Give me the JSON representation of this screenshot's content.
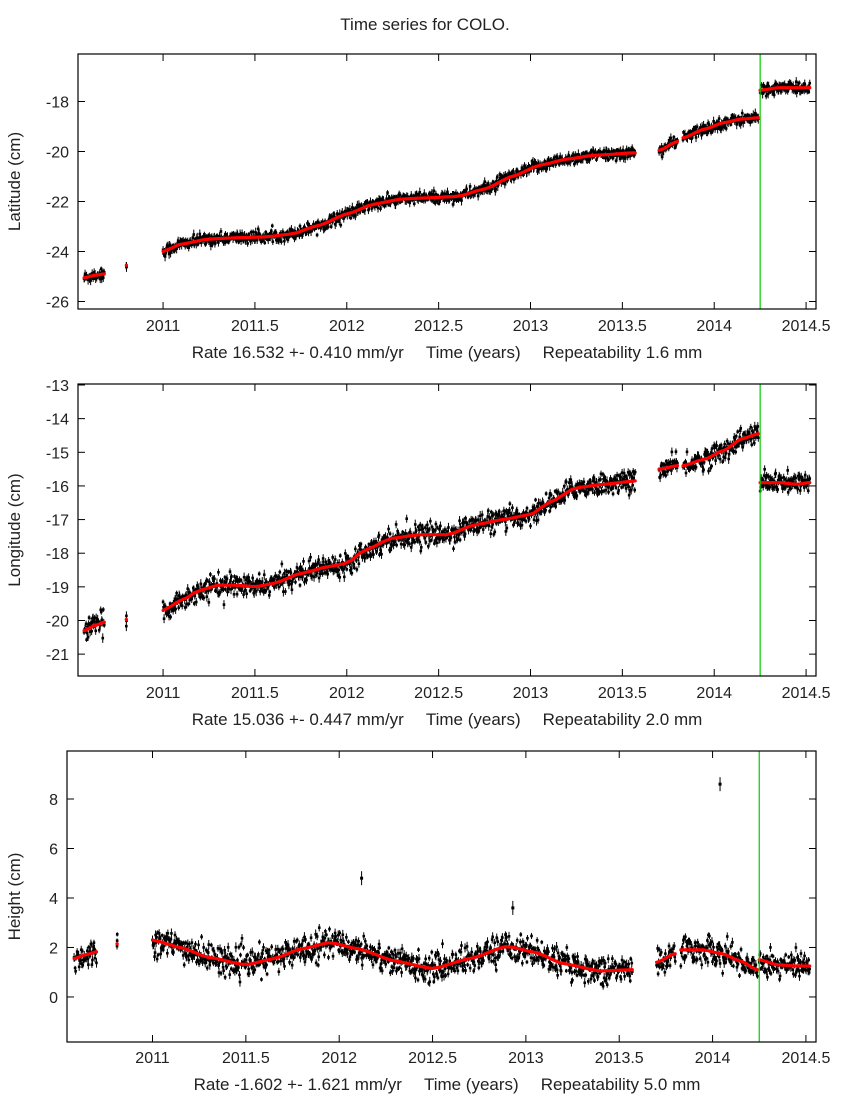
{
  "title": "Time series for COLO.",
  "colors": {
    "data": "#000000",
    "fit": "#ff0000",
    "event_line": "#00cc00",
    "frame": "#000000"
  },
  "chart_data": [
    {
      "type": "scatter",
      "name": "latitude",
      "ylabel": "Latitude (cm)",
      "xlabel_parts": [
        "Rate 16.532 +- 0.410 mm/yr",
        "Time (years)",
        "Repeatability 1.6 mm"
      ],
      "xlim": [
        2010.537,
        2014.554
      ],
      "ylim": [
        -26.3,
        -16.1
      ],
      "xticks": [
        2011,
        2011.5,
        2012,
        2012.5,
        2013,
        2013.5,
        2014,
        2014.5
      ],
      "xtick_labels": [
        "2011",
        "2011.5",
        "2012",
        "2012.5",
        "2013",
        "2013.5",
        "2014",
        "2014.5"
      ],
      "yticks": [
        -18,
        -20,
        -22,
        -24,
        -26
      ],
      "ytick_labels": [
        "-18",
        "-20",
        "-22",
        "-24",
        "-26"
      ],
      "event_x": 2014.25,
      "noise": 0.2,
      "fit_segments": [
        {
          "x": [
            2010.57,
            2010.63,
            2010.68
          ],
          "y": [
            -25.05,
            -24.95,
            -24.9
          ]
        },
        {
          "x": [
            2010.8,
            2010.801
          ],
          "y": [
            -24.55,
            -24.55
          ]
        },
        {
          "x": [
            2011.0,
            2011.1,
            2011.25,
            2011.4,
            2011.55,
            2011.7,
            2011.85,
            2012.0,
            2012.15,
            2012.3,
            2012.45,
            2012.6,
            2012.75,
            2012.9,
            2013.05,
            2013.2,
            2013.35,
            2013.57
          ],
          "y": [
            -24.0,
            -23.7,
            -23.5,
            -23.45,
            -23.42,
            -23.3,
            -22.95,
            -22.5,
            -22.1,
            -21.9,
            -21.85,
            -21.8,
            -21.5,
            -21.0,
            -20.55,
            -20.3,
            -20.15,
            -20.05
          ]
        },
        {
          "x": [
            2013.7,
            2013.8
          ],
          "y": [
            -19.95,
            -19.6
          ]
        },
        {
          "x": [
            2013.83,
            2013.95,
            2014.05,
            2014.15,
            2014.24
          ],
          "y": [
            -19.45,
            -19.1,
            -18.85,
            -18.7,
            -18.65
          ]
        },
        {
          "x": [
            2014.25,
            2014.35,
            2014.45,
            2014.52
          ],
          "y": [
            -17.55,
            -17.45,
            -17.45,
            -17.45
          ]
        }
      ]
    },
    {
      "type": "scatter",
      "name": "longitude",
      "ylabel": "Longitude (cm)",
      "xlabel_parts": [
        "Rate 15.036 +- 0.447 mm/yr",
        "Time (years)",
        "Repeatability 2.0 mm"
      ],
      "xlim": [
        2010.537,
        2014.554
      ],
      "ylim": [
        -21.65,
        -12.97
      ],
      "xticks": [
        2011,
        2011.5,
        2012,
        2012.5,
        2013,
        2013.5,
        2014,
        2014.5
      ],
      "xtick_labels": [
        "2011",
        "2011.5",
        "2012",
        "2012.5",
        "2013",
        "2013.5",
        "2014",
        "2014.5"
      ],
      "yticks": [
        -13,
        -14,
        -15,
        -16,
        -17,
        -18,
        -19,
        -20,
        -21
      ],
      "ytick_labels": [
        "-13",
        "-14",
        "-15",
        "-16",
        "-17",
        "-18",
        "-19",
        "-20",
        "-21"
      ],
      "event_x": 2014.25,
      "noise": 0.28,
      "fit_segments": [
        {
          "x": [
            2010.57,
            2010.63,
            2010.68
          ],
          "y": [
            -20.3,
            -20.15,
            -20.05
          ]
        },
        {
          "x": [
            2010.8,
            2010.801
          ],
          "y": [
            -19.97,
            -19.97
          ]
        },
        {
          "x": [
            2011.0,
            2011.1,
            2011.2,
            2011.3,
            2011.4,
            2011.5,
            2011.6,
            2011.75,
            2011.9,
            2012.0,
            2012.1,
            2012.25,
            2012.4,
            2012.55,
            2012.7,
            2012.85,
            2013.0,
            2013.1,
            2013.25,
            2013.4,
            2013.57
          ],
          "y": [
            -19.7,
            -19.4,
            -19.1,
            -18.95,
            -18.95,
            -19.0,
            -18.9,
            -18.6,
            -18.4,
            -18.3,
            -17.9,
            -17.55,
            -17.45,
            -17.45,
            -17.15,
            -17.0,
            -16.85,
            -16.5,
            -16.05,
            -15.95,
            -15.85
          ]
        },
        {
          "x": [
            2013.7,
            2013.8
          ],
          "y": [
            -15.5,
            -15.4
          ]
        },
        {
          "x": [
            2013.83,
            2013.95,
            2014.05,
            2014.15,
            2014.24
          ],
          "y": [
            -15.4,
            -15.2,
            -14.95,
            -14.6,
            -14.45
          ]
        },
        {
          "x": [
            2014.25,
            2014.35,
            2014.45,
            2014.52
          ],
          "y": [
            -15.9,
            -15.9,
            -15.95,
            -15.9
          ]
        }
      ]
    },
    {
      "type": "scatter",
      "name": "height",
      "ylabel": "Height (cm)",
      "xlabel_parts": [
        "Rate -1.602 +- 1.621 mm/yr",
        "Time (years)",
        "Repeatability 5.0 mm"
      ],
      "xlim": [
        2010.542,
        2014.554
      ],
      "ylim": [
        -1.82,
        9.94
      ],
      "xticks": [
        2011,
        2011.5,
        2012,
        2012.5,
        2013,
        2013.5,
        2014,
        2014.5
      ],
      "xtick_labels": [
        "2011",
        "2011.5",
        "2012",
        "2012.5",
        "2013",
        "2013.5",
        "2014",
        "2014.5"
      ],
      "yticks": [
        8,
        6,
        4,
        2,
        0
      ],
      "ytick_labels": [
        "8",
        "6",
        "4",
        "2",
        "0"
      ],
      "event_x": 2014.25,
      "noise": 0.5,
      "fit_segments": [
        {
          "x": [
            2010.58,
            2010.64,
            2010.7
          ],
          "y": [
            1.55,
            1.7,
            1.82
          ]
        },
        {
          "x": [
            2010.81,
            2010.811
          ],
          "y": [
            2.15,
            2.15
          ]
        },
        {
          "x": [
            2011.0,
            2011.15,
            2011.3,
            2011.5,
            2011.65,
            2011.8,
            2011.95,
            2012.1,
            2012.3,
            2012.5,
            2012.7,
            2012.9,
            2013.05,
            2013.2,
            2013.4,
            2013.57
          ],
          "y": [
            2.3,
            2.0,
            1.6,
            1.3,
            1.55,
            1.95,
            2.2,
            1.95,
            1.45,
            1.15,
            1.55,
            2.05,
            1.8,
            1.35,
            1.05,
            1.1
          ]
        },
        {
          "x": [
            2013.7,
            2013.8
          ],
          "y": [
            1.4,
            1.75
          ]
        },
        {
          "x": [
            2013.83,
            2013.95,
            2014.05,
            2014.15,
            2014.24
          ],
          "y": [
            1.9,
            1.9,
            1.75,
            1.45,
            1.1
          ]
        },
        {
          "x": [
            2014.25,
            2014.35,
            2014.45,
            2014.52
          ],
          "y": [
            1.5,
            1.3,
            1.25,
            1.25
          ]
        }
      ],
      "outliers": [
        {
          "x": 2014.04,
          "y": 8.6
        },
        {
          "x": 2012.12,
          "y": 4.8
        },
        {
          "x": 2012.93,
          "y": 3.6
        }
      ]
    }
  ]
}
